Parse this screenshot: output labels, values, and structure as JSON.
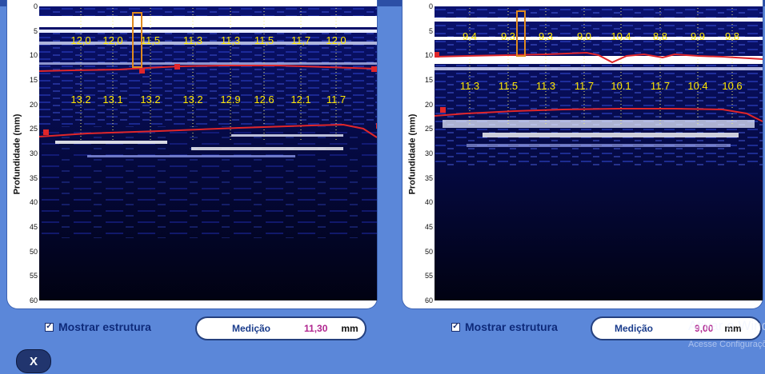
{
  "left_panel": {
    "axis_label": "Profundidade (mm)",
    "ticks": [
      "0",
      "5",
      "10",
      "15",
      "20",
      "25",
      "30",
      "35",
      "40",
      "45",
      "50",
      "55",
      "60"
    ],
    "upper_values": [
      "12,0",
      "12,0",
      "11,5",
      "11,3",
      "11,3",
      "11,5",
      "11,7",
      "12,0"
    ],
    "lower_values": [
      "13.2",
      "13.1",
      "13.2",
      "13.2",
      "12.9",
      "12.6",
      "12.1",
      "11.7"
    ]
  },
  "right_panel": {
    "axis_label": "Profundidade (mm)",
    "ticks": [
      "0",
      "5",
      "10",
      "15",
      "20",
      "25",
      "30",
      "35",
      "40",
      "45",
      "50",
      "55",
      "60"
    ],
    "upper_values": [
      "9.4",
      "9.3",
      "9.3",
      "9.0",
      "10.4",
      "8.8",
      "9.9",
      "9.8"
    ],
    "lower_values": [
      "11.3",
      "11.5",
      "11.3",
      "11.7",
      "10.1",
      "11.7",
      "10.4",
      "10.6"
    ]
  },
  "controls": {
    "left": {
      "checkbox_label": "Mostrar estrutura",
      "checked": true,
      "measure_label": "Medição",
      "measure_value": "11,30",
      "unit": "mm"
    },
    "right": {
      "checkbox_label": "Mostrar estrutura",
      "checked": true,
      "measure_label": "Medição",
      "measure_value": "9,00",
      "unit": "mm"
    }
  },
  "close_button": {
    "label": "X"
  },
  "watermark": {
    "line1": "Ativar o Windows",
    "line2": "Acesse Configurações"
  },
  "colors": {
    "background": "#5b87d9",
    "scan_dark": "#02031e",
    "marker": "#e0262a",
    "value_text": "#ffe700",
    "highlight_box": "#e08a1e",
    "measure_value": "#b0258f"
  }
}
